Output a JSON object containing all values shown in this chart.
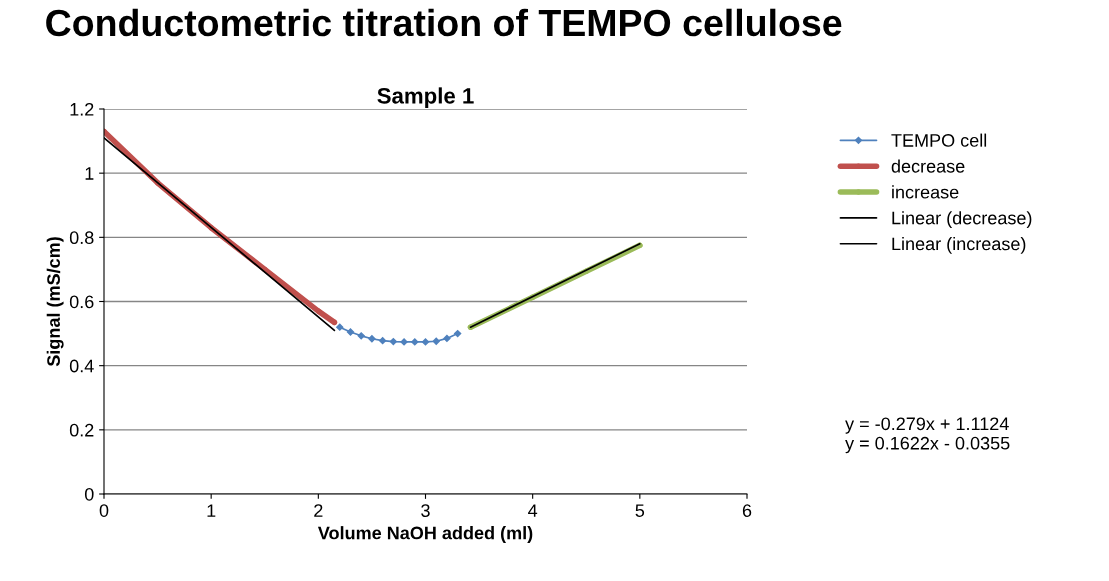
{
  "chart_data": {
    "type": "line",
    "title": "Conductometric titration of TEMPO cellulose",
    "subtitle": "Sample 1",
    "xlabel": "Volume NaOH added (ml)",
    "ylabel": "Signal (mS/cm)",
    "xlim": [
      0,
      6
    ],
    "xticks": [
      0,
      1,
      2,
      3,
      4,
      5,
      6
    ],
    "ylim": [
      0,
      1.2
    ],
    "yticks": [
      {
        "value": 0,
        "label": "0"
      },
      0.2,
      0.4,
      0.6,
      0.8,
      {
        "value": 1,
        "label": "1"
      },
      1.2
    ],
    "grid": "y",
    "legend": "right",
    "series": [
      {
        "name": "TEMPO cell",
        "color": "#4f81bd",
        "marker": "diamond",
        "x": [
          2.2,
          2.3,
          2.4,
          2.5,
          2.6,
          2.7,
          2.8,
          2.9,
          3.0,
          3.1,
          3.2,
          3.3
        ],
        "values": [
          0.52,
          0.505,
          0.493,
          0.484,
          0.478,
          0.475,
          0.474,
          0.474,
          0.474,
          0.476,
          0.485,
          0.5
        ]
      },
      {
        "name": "decrease",
        "color": "#c0504d",
        "marker": "circle",
        "x": [
          0,
          0.5,
          1,
          1.5,
          2,
          2.15
        ],
        "values": [
          1.13,
          0.97,
          0.83,
          0.7,
          0.57,
          0.535
        ]
      },
      {
        "name": "increase",
        "color": "#9bbb59",
        "marker": "circle",
        "x": [
          3.42,
          4,
          4.5,
          5
        ],
        "values": [
          0.52,
          0.613,
          0.694,
          0.775
        ]
      },
      {
        "name": "Linear (decrease)",
        "color": "#000000",
        "marker": "none",
        "x": [
          0,
          2.15
        ],
        "values": [
          1.11,
          0.51
        ]
      },
      {
        "name": "Linear (increase)",
        "color": "#000000",
        "marker": "none",
        "x": [
          3.42,
          5
        ],
        "values": [
          0.52,
          0.78
        ]
      }
    ],
    "annotations": [
      "y = -0.279x + 1.1124",
      "y = 0.1622x - 0.0355"
    ]
  }
}
